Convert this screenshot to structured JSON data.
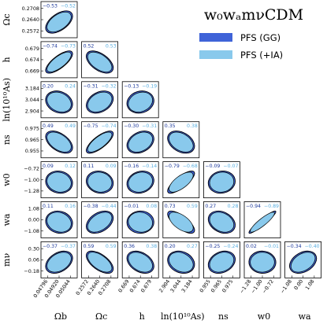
{
  "chart_data": {
    "type": "scatter",
    "subtype": "corner-plot",
    "title": "w₀wₐmνCDM",
    "legend": {
      "placement": "top-right",
      "entries": [
        {
          "label": "PFS (GG)",
          "color": "#3f63d8"
        },
        {
          "label": "PFS (+IA)",
          "color": "#89c9ec"
        }
      ]
    },
    "parameters": [
      {
        "key": "Ob",
        "label": "Ωb",
        "ticks": [
          "0.04796",
          "0.04920",
          "0.05044"
        ],
        "range": [
          0.0473,
          0.0511
        ]
      },
      {
        "key": "Oc",
        "label": "Ωc",
        "ticks": [
          "0.2572",
          "0.2640",
          "0.2708"
        ],
        "range": [
          0.2536,
          0.2744
        ]
      },
      {
        "key": "h",
        "label": "h",
        "ticks": [
          "0.669",
          "0.674",
          "0.679"
        ],
        "range": [
          0.6663,
          0.6817
        ]
      },
      {
        "key": "lnAs",
        "label": "ln(10¹⁰As)",
        "ticks": [
          "2.904",
          "3.044",
          "3.184"
        ],
        "range": [
          2.83,
          3.258
        ]
      },
      {
        "key": "ns",
        "label": "ns",
        "ticks": [
          "0.955",
          "0.965",
          "0.975"
        ],
        "range": [
          0.9497,
          0.9803
        ]
      },
      {
        "key": "w0",
        "label": "w0",
        "ticks": [
          "−1.28",
          "−1.00",
          "−0.72"
        ],
        "range": [
          -1.428,
          -0.572
        ]
      },
      {
        "key": "wa",
        "label": "wa",
        "ticks": [
          "−1.08",
          "0.00",
          "1.08"
        ],
        "range": [
          -1.65,
          1.65
        ]
      },
      {
        "key": "mnu",
        "label": "mν",
        "ticks": [
          "−0.18",
          "0.06",
          "0.30"
        ],
        "range": [
          -0.307,
          0.427
        ]
      }
    ],
    "correlations": [
      {
        "row": "Oc",
        "col": "Ob",
        "gg": "−0.53",
        "ia": "−0.52"
      },
      {
        "row": "h",
        "col": "Ob",
        "gg": "−0.74",
        "ia": "−0.73"
      },
      {
        "row": "h",
        "col": "Oc",
        "gg": "0.52",
        "ia": "0.53"
      },
      {
        "row": "lnAs",
        "col": "Ob",
        "gg": "0.20",
        "ia": "0.24"
      },
      {
        "row": "lnAs",
        "col": "Oc",
        "gg": "−0.31",
        "ia": "−0.32"
      },
      {
        "row": "lnAs",
        "col": "h",
        "gg": "−0.13",
        "ia": "−0.19"
      },
      {
        "row": "ns",
        "col": "Ob",
        "gg": "0.49",
        "ia": "0.49"
      },
      {
        "row": "ns",
        "col": "Oc",
        "gg": "−0.75",
        "ia": "−0.74"
      },
      {
        "row": "ns",
        "col": "h",
        "gg": "−0.30",
        "ia": "−0.31"
      },
      {
        "row": "ns",
        "col": "lnAs",
        "gg": "0.35",
        "ia": "0.38"
      },
      {
        "row": "w0",
        "col": "Ob",
        "gg": "0.09",
        "ia": "0.12"
      },
      {
        "row": "w0",
        "col": "Oc",
        "gg": "0.11",
        "ia": "0.09"
      },
      {
        "row": "w0",
        "col": "h",
        "gg": "−0.16",
        "ia": "−0.14"
      },
      {
        "row": "w0",
        "col": "lnAs",
        "gg": "−0.79",
        "ia": "−0.68"
      },
      {
        "row": "w0",
        "col": "ns",
        "gg": "−0.09",
        "ia": "−0.07"
      },
      {
        "row": "wa",
        "col": "Ob",
        "gg": "0.11",
        "ia": "0.16"
      },
      {
        "row": "wa",
        "col": "Oc",
        "gg": "−0.38",
        "ia": "−0.44"
      },
      {
        "row": "wa",
        "col": "h",
        "gg": "−0.01",
        "ia": "0.08"
      },
      {
        "row": "wa",
        "col": "lnAs",
        "gg": "0.73",
        "ia": "0.59"
      },
      {
        "row": "wa",
        "col": "ns",
        "gg": "0.27",
        "ia": "0.28"
      },
      {
        "row": "wa",
        "col": "w0",
        "gg": "−0.94",
        "ia": "−0.89"
      },
      {
        "row": "mnu",
        "col": "Ob",
        "gg": "−0.37",
        "ia": "−0.37"
      },
      {
        "row": "mnu",
        "col": "Oc",
        "gg": "0.59",
        "ia": "0.59"
      },
      {
        "row": "mnu",
        "col": "h",
        "gg": "0.36",
        "ia": "0.38"
      },
      {
        "row": "mnu",
        "col": "lnAs",
        "gg": "0.20",
        "ia": "0.27"
      },
      {
        "row": "mnu",
        "col": "ns",
        "gg": "−0.25",
        "ia": "−0.24"
      },
      {
        "row": "mnu",
        "col": "w0",
        "gg": "0.02",
        "ia": "−0.01"
      },
      {
        "row": "mnu",
        "col": "wa",
        "gg": "−0.34",
        "ia": "−0.40"
      }
    ],
    "grid": false
  }
}
